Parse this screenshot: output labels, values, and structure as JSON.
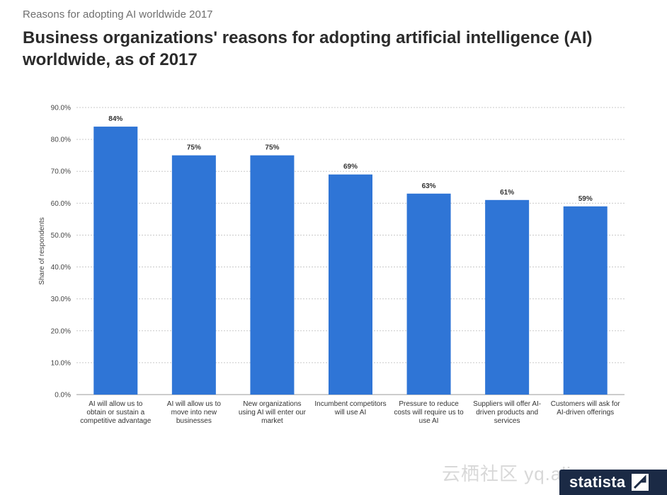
{
  "header": {
    "supertitle": "Reasons for adopting AI worldwide 2017",
    "title": "Business organizations' reasons for adopting artificial intelligence (AI) worldwide, as of 2017"
  },
  "chart_data": {
    "type": "bar",
    "title": "Business organizations' reasons for adopting artificial intelligence (AI) worldwide, as of 2017",
    "ylabel": "Share of respondents",
    "xlabel": "",
    "ylim": [
      0,
      90
    ],
    "yticks": [
      "0.0%",
      "10.0%",
      "20.0%",
      "30.0%",
      "40.0%",
      "50.0%",
      "60.0%",
      "70.0%",
      "80.0%",
      "90.0%"
    ],
    "categories": [
      [
        "AI will allow us to",
        "obtain or sustain a",
        "competitive advantage"
      ],
      [
        "AI will allow us to",
        "move into new",
        "businesses"
      ],
      [
        "New organizations",
        "using AI will enter our",
        "market"
      ],
      [
        "Incumbent competitors",
        "will use AI"
      ],
      [
        "Pressure to reduce",
        "costs will require us to",
        "use AI"
      ],
      [
        "Suppliers will offer AI-",
        "driven products and",
        "services"
      ],
      [
        "Customers will ask for",
        "AI-driven offerings"
      ]
    ],
    "values": [
      84,
      75,
      75,
      69,
      63,
      61,
      59
    ],
    "data_labels": [
      "84%",
      "75%",
      "75%",
      "69%",
      "63%",
      "61%",
      "59%"
    ],
    "grid": true,
    "bar_color": "#2f75d6"
  },
  "watermark": "云栖社区 yq.aliyun.com",
  "brand": {
    "name": "statista"
  }
}
